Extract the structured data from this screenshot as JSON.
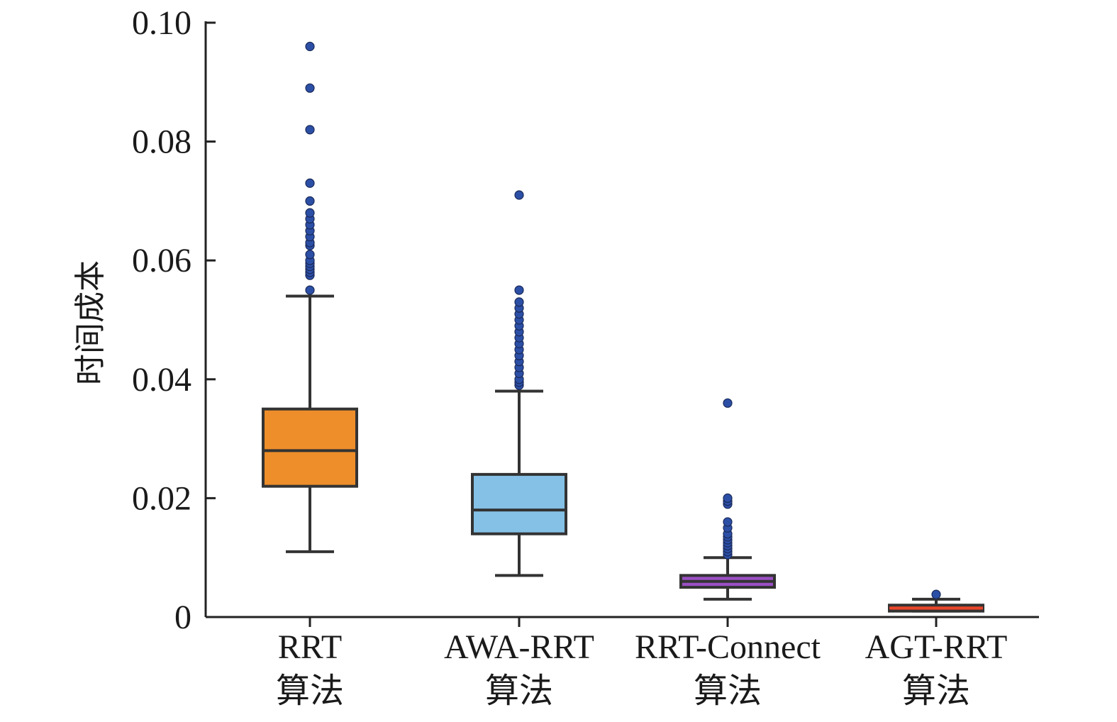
{
  "chart_data": {
    "type": "box",
    "title": "",
    "xlabel": "",
    "ylabel": "时间成本",
    "ylim": [
      0,
      0.1
    ],
    "yticks": [
      0,
      0.02,
      0.04,
      0.06,
      0.08,
      0.1
    ],
    "ytick_labels": [
      "0",
      "0.02",
      "0.04",
      "0.06",
      "0.08",
      "0.10"
    ],
    "grid": false,
    "series": [
      {
        "name": "RRT 算法",
        "label_lines": [
          "RRT",
          "算法"
        ],
        "color": "#EE8E2A",
        "whisker_low": 0.011,
        "q1": 0.022,
        "median": 0.028,
        "q3": 0.035,
        "whisker_high": 0.054,
        "outliers": [
          0.055,
          0.0575,
          0.058,
          0.0585,
          0.059,
          0.0595,
          0.06,
          0.061,
          0.0625,
          0.063,
          0.064,
          0.065,
          0.066,
          0.067,
          0.068,
          0.07,
          0.073,
          0.082,
          0.089,
          0.096
        ]
      },
      {
        "name": "AWA-RRT 算法",
        "label_lines": [
          "AWA-RRT",
          "算法"
        ],
        "color": "#85C0E6",
        "whisker_low": 0.007,
        "q1": 0.014,
        "median": 0.018,
        "q3": 0.024,
        "whisker_high": 0.038,
        "outliers": [
          0.039,
          0.0395,
          0.04,
          0.041,
          0.042,
          0.043,
          0.044,
          0.045,
          0.046,
          0.047,
          0.048,
          0.049,
          0.05,
          0.051,
          0.052,
          0.053,
          0.055,
          0.071
        ]
      },
      {
        "name": "RRT-Connect 算法",
        "label_lines": [
          "RRT-Connect",
          "算法"
        ],
        "color": "#9B4FC4",
        "whisker_low": 0.003,
        "q1": 0.005,
        "median": 0.006,
        "q3": 0.007,
        "whisker_high": 0.01,
        "outliers": [
          0.0105,
          0.011,
          0.0115,
          0.012,
          0.0125,
          0.013,
          0.0135,
          0.014,
          0.015,
          0.016,
          0.019,
          0.0195,
          0.02,
          0.036
        ]
      },
      {
        "name": "AGT-RRT 算法",
        "label_lines": [
          "AGT-RRT",
          "算法"
        ],
        "color": "#E8452A",
        "whisker_low": 0.001,
        "q1": 0.001,
        "median": 0.0015,
        "q3": 0.002,
        "whisker_high": 0.003,
        "outliers": [
          0.0038
        ]
      }
    ],
    "outlier_color": "#2C4FA6",
    "line_color": "#333333"
  }
}
